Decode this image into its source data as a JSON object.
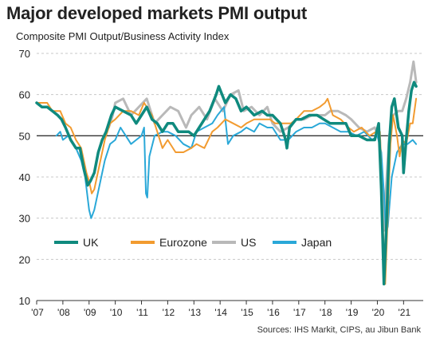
{
  "title": "Major developed markets PMI output",
  "subtitle": "Composite PMI Output/Business Activity Index",
  "source": "Sources: IHS Markit, CIPS, au Jibun Bank",
  "chart_data": {
    "type": "line",
    "title": "Major developed markets PMI output",
    "ylabel": "Composite PMI Output/Business Activity Index",
    "xlabel": "",
    "xlim": [
      2007.0,
      2021.75
    ],
    "ylim": [
      10,
      70
    ],
    "yticks": [
      10,
      20,
      30,
      40,
      50,
      60,
      70
    ],
    "xticks": [
      {
        "v": 2007,
        "label": "'07"
      },
      {
        "v": 2008,
        "label": "'08"
      },
      {
        "v": 2009,
        "label": "'09"
      },
      {
        "v": 2010,
        "label": "'10"
      },
      {
        "v": 2011,
        "label": "'11"
      },
      {
        "v": 2012,
        "label": "'12"
      },
      {
        "v": 2013,
        "label": "'13"
      },
      {
        "v": 2014,
        "label": "'14"
      },
      {
        "v": 2015,
        "label": "'15"
      },
      {
        "v": 2016,
        "label": "'16"
      },
      {
        "v": 2017,
        "label": "'17"
      },
      {
        "v": 2018,
        "label": "'18"
      },
      {
        "v": 2019,
        "label": "'19"
      },
      {
        "v": 2020,
        "label": "'20"
      },
      {
        "v": 2021,
        "label": "'21"
      }
    ],
    "grid": "horizontal dashed",
    "reference_line": 50,
    "legend_position": "lower middle",
    "series": [
      {
        "name": "US",
        "color": "#b9b9b9",
        "width": 3,
        "points": [
          [
            2009.75,
            52
          ],
          [
            2009.9,
            55
          ],
          [
            2010.0,
            58
          ],
          [
            2010.3,
            59
          ],
          [
            2010.6,
            55
          ],
          [
            2010.9,
            57
          ],
          [
            2011.2,
            59
          ],
          [
            2011.5,
            53
          ],
          [
            2011.8,
            55
          ],
          [
            2012.1,
            57
          ],
          [
            2012.4,
            56
          ],
          [
            2012.7,
            52
          ],
          [
            2012.9,
            55
          ],
          [
            2013.2,
            57
          ],
          [
            2013.5,
            54
          ],
          [
            2013.8,
            59
          ],
          [
            2014.1,
            56
          ],
          [
            2014.4,
            60
          ],
          [
            2014.7,
            61
          ],
          [
            2014.9,
            56
          ],
          [
            2015.2,
            57
          ],
          [
            2015.5,
            55
          ],
          [
            2015.8,
            57
          ],
          [
            2016.0,
            53
          ],
          [
            2016.3,
            51
          ],
          [
            2016.6,
            52
          ],
          [
            2016.9,
            54
          ],
          [
            2017.2,
            54
          ],
          [
            2017.5,
            55
          ],
          [
            2017.8,
            55
          ],
          [
            2018.0,
            55
          ],
          [
            2018.2,
            56
          ],
          [
            2018.5,
            56
          ],
          [
            2018.8,
            55
          ],
          [
            2019.0,
            54
          ],
          [
            2019.3,
            52
          ],
          [
            2019.6,
            51
          ],
          [
            2019.9,
            52
          ],
          [
            2020.1,
            49
          ],
          [
            2020.25,
            27
          ],
          [
            2020.33,
            37
          ],
          [
            2020.45,
            50
          ],
          [
            2020.6,
            55
          ],
          [
            2020.8,
            56
          ],
          [
            2020.95,
            56
          ],
          [
            2021.1,
            59
          ],
          [
            2021.25,
            63
          ],
          [
            2021.38,
            68
          ],
          [
            2021.48,
            63
          ]
        ]
      },
      {
        "name": "Japan",
        "color": "#2aa8d8",
        "width": 2,
        "points": [
          [
            2007.75,
            50
          ],
          [
            2007.9,
            51
          ],
          [
            2008.0,
            49
          ],
          [
            2008.2,
            50
          ],
          [
            2008.5,
            47
          ],
          [
            2008.7,
            44
          ],
          [
            2008.85,
            40
          ],
          [
            2009.0,
            32
          ],
          [
            2009.08,
            30
          ],
          [
            2009.2,
            32
          ],
          [
            2009.4,
            38
          ],
          [
            2009.6,
            44
          ],
          [
            2009.8,
            48
          ],
          [
            2010.0,
            49
          ],
          [
            2010.2,
            52
          ],
          [
            2010.4,
            50
          ],
          [
            2010.6,
            48
          ],
          [
            2010.8,
            49
          ],
          [
            2011.0,
            50
          ],
          [
            2011.1,
            52
          ],
          [
            2011.17,
            36
          ],
          [
            2011.22,
            35
          ],
          [
            2011.3,
            45
          ],
          [
            2011.5,
            50
          ],
          [
            2011.8,
            51
          ],
          [
            2012.0,
            51
          ],
          [
            2012.3,
            50
          ],
          [
            2012.6,
            48
          ],
          [
            2012.9,
            47
          ],
          [
            2013.1,
            51
          ],
          [
            2013.4,
            52
          ],
          [
            2013.7,
            53
          ],
          [
            2013.9,
            55
          ],
          [
            2014.15,
            57
          ],
          [
            2014.3,
            48
          ],
          [
            2014.5,
            50
          ],
          [
            2014.8,
            51
          ],
          [
            2015.0,
            52
          ],
          [
            2015.3,
            51
          ],
          [
            2015.5,
            53
          ],
          [
            2015.8,
            52
          ],
          [
            2016.0,
            52
          ],
          [
            2016.3,
            49
          ],
          [
            2016.6,
            49
          ],
          [
            2016.9,
            51
          ],
          [
            2017.2,
            52
          ],
          [
            2017.5,
            52
          ],
          [
            2017.8,
            53
          ],
          [
            2018.0,
            53
          ],
          [
            2018.3,
            52
          ],
          [
            2018.6,
            51
          ],
          [
            2018.9,
            51
          ],
          [
            2019.2,
            50
          ],
          [
            2019.5,
            51
          ],
          [
            2019.8,
            49
          ],
          [
            2020.0,
            50
          ],
          [
            2020.15,
            46
          ],
          [
            2020.25,
            36
          ],
          [
            2020.33,
            26
          ],
          [
            2020.4,
            28
          ],
          [
            2020.55,
            40
          ],
          [
            2020.75,
            46
          ],
          [
            2020.95,
            48
          ],
          [
            2021.15,
            48
          ],
          [
            2021.35,
            49
          ],
          [
            2021.48,
            48
          ]
        ]
      },
      {
        "name": "Eurozone",
        "color": "#f29b30",
        "width": 2,
        "points": [
          [
            2007.0,
            58
          ],
          [
            2007.2,
            58
          ],
          [
            2007.4,
            58
          ],
          [
            2007.6,
            56
          ],
          [
            2007.9,
            56
          ],
          [
            2008.1,
            53
          ],
          [
            2008.3,
            52
          ],
          [
            2008.5,
            49
          ],
          [
            2008.7,
            47
          ],
          [
            2008.9,
            41
          ],
          [
            2009.0,
            39
          ],
          [
            2009.1,
            36
          ],
          [
            2009.2,
            37
          ],
          [
            2009.4,
            43
          ],
          [
            2009.6,
            49
          ],
          [
            2009.8,
            53
          ],
          [
            2010.0,
            54
          ],
          [
            2010.3,
            56
          ],
          [
            2010.6,
            56
          ],
          [
            2010.9,
            55
          ],
          [
            2011.1,
            58
          ],
          [
            2011.4,
            55
          ],
          [
            2011.6,
            51
          ],
          [
            2011.8,
            47
          ],
          [
            2012.0,
            49
          ],
          [
            2012.3,
            46
          ],
          [
            2012.6,
            46
          ],
          [
            2012.9,
            47
          ],
          [
            2013.1,
            48
          ],
          [
            2013.4,
            47
          ],
          [
            2013.7,
            51
          ],
          [
            2013.9,
            52
          ],
          [
            2014.2,
            54
          ],
          [
            2014.5,
            53
          ],
          [
            2014.8,
            52
          ],
          [
            2015.0,
            53
          ],
          [
            2015.3,
            54
          ],
          [
            2015.6,
            54
          ],
          [
            2015.9,
            54
          ],
          [
            2016.1,
            53
          ],
          [
            2016.4,
            53
          ],
          [
            2016.7,
            53
          ],
          [
            2016.9,
            54
          ],
          [
            2017.2,
            56
          ],
          [
            2017.5,
            56
          ],
          [
            2017.8,
            57
          ],
          [
            2018.0,
            58
          ],
          [
            2018.1,
            59
          ],
          [
            2018.3,
            55
          ],
          [
            2018.6,
            54
          ],
          [
            2018.9,
            52
          ],
          [
            2019.1,
            51
          ],
          [
            2019.4,
            52
          ],
          [
            2019.7,
            50
          ],
          [
            2019.95,
            51
          ],
          [
            2020.1,
            51
          ],
          [
            2020.2,
            30
          ],
          [
            2020.3,
            14
          ],
          [
            2020.4,
            31
          ],
          [
            2020.5,
            48
          ],
          [
            2020.6,
            55
          ],
          [
            2020.75,
            50
          ],
          [
            2020.85,
            45
          ],
          [
            2020.95,
            49
          ],
          [
            2021.1,
            48
          ],
          [
            2021.25,
            53
          ],
          [
            2021.35,
            53
          ],
          [
            2021.48,
            59
          ]
        ]
      },
      {
        "name": "UK",
        "color": "#0f8a7e",
        "width": 3.5,
        "points": [
          [
            2007.0,
            58
          ],
          [
            2007.2,
            57
          ],
          [
            2007.4,
            57
          ],
          [
            2007.6,
            56
          ],
          [
            2007.8,
            55
          ],
          [
            2007.95,
            54
          ],
          [
            2008.1,
            52
          ],
          [
            2008.3,
            49
          ],
          [
            2008.5,
            47
          ],
          [
            2008.65,
            47
          ],
          [
            2008.8,
            42
          ],
          [
            2008.95,
            38
          ],
          [
            2009.05,
            39
          ],
          [
            2009.2,
            41
          ],
          [
            2009.35,
            46
          ],
          [
            2009.5,
            49
          ],
          [
            2009.65,
            51
          ],
          [
            2009.85,
            55
          ],
          [
            2010.0,
            57
          ],
          [
            2010.3,
            56
          ],
          [
            2010.6,
            55
          ],
          [
            2010.8,
            53
          ],
          [
            2011.0,
            55
          ],
          [
            2011.2,
            57
          ],
          [
            2011.4,
            54
          ],
          [
            2011.6,
            53
          ],
          [
            2011.8,
            51
          ],
          [
            2012.0,
            53
          ],
          [
            2012.2,
            53
          ],
          [
            2012.4,
            51
          ],
          [
            2012.6,
            51
          ],
          [
            2012.8,
            51
          ],
          [
            2013.0,
            50
          ],
          [
            2013.3,
            53
          ],
          [
            2013.6,
            56
          ],
          [
            2013.85,
            60
          ],
          [
            2013.95,
            62
          ],
          [
            2014.2,
            58
          ],
          [
            2014.4,
            60
          ],
          [
            2014.6,
            59
          ],
          [
            2014.8,
            56
          ],
          [
            2015.0,
            57
          ],
          [
            2015.3,
            55
          ],
          [
            2015.6,
            56
          ],
          [
            2015.8,
            55
          ],
          [
            2016.0,
            55
          ],
          [
            2016.3,
            53
          ],
          [
            2016.5,
            49
          ],
          [
            2016.55,
            47
          ],
          [
            2016.65,
            52
          ],
          [
            2016.9,
            54
          ],
          [
            2017.1,
            54
          ],
          [
            2017.4,
            55
          ],
          [
            2017.7,
            55
          ],
          [
            2017.95,
            54
          ],
          [
            2018.2,
            53
          ],
          [
            2018.5,
            53
          ],
          [
            2018.8,
            53
          ],
          [
            2019.0,
            50
          ],
          [
            2019.3,
            50
          ],
          [
            2019.6,
            49
          ],
          [
            2019.9,
            49
          ],
          [
            2020.05,
            53
          ],
          [
            2020.15,
            37
          ],
          [
            2020.25,
            14
          ],
          [
            2020.35,
            29
          ],
          [
            2020.45,
            48
          ],
          [
            2020.55,
            57
          ],
          [
            2020.65,
            59
          ],
          [
            2020.8,
            52
          ],
          [
            2020.95,
            50
          ],
          [
            2021.0,
            41
          ],
          [
            2021.1,
            49
          ],
          [
            2021.2,
            56
          ],
          [
            2021.3,
            61
          ],
          [
            2021.4,
            63
          ],
          [
            2021.48,
            62
          ]
        ]
      }
    ],
    "legend": [
      "UK",
      "Eurozone",
      "US",
      "Japan"
    ]
  }
}
